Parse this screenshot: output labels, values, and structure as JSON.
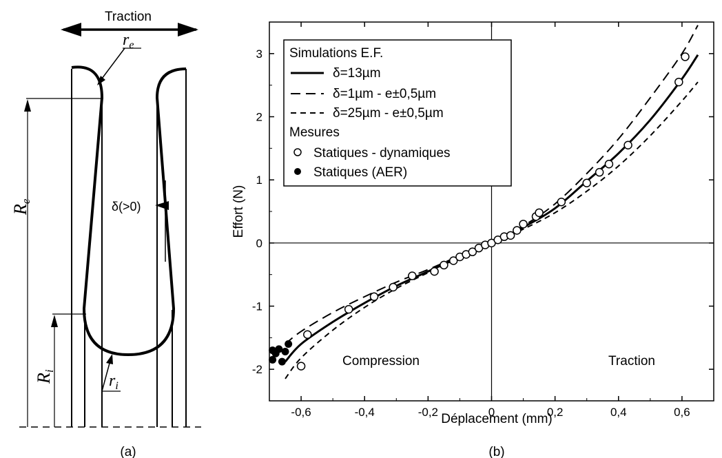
{
  "diagram": {
    "top_label": "Traction",
    "label_re": "r",
    "label_re_sub": "e",
    "label_Re": "R",
    "label_Re_sub": "e",
    "label_ri": "r",
    "label_ri_sub": "i",
    "label_Ri": "R",
    "label_Ri_sub": "i",
    "delta_label": "δ(>0)",
    "caption": "(a)"
  },
  "chart_caption": "(b)",
  "chart_data": {
    "type": "line",
    "title": "",
    "xlabel": "Déplacement (mm)",
    "ylabel": "Effort (N)",
    "xlim": [
      -0.7,
      0.7
    ],
    "ylim": [
      -2.5,
      3.5
    ],
    "xticks": [
      -0.6,
      -0.4,
      -0.2,
      0,
      0.2,
      0.4,
      0.6
    ],
    "xtick_labels": [
      "-0,6",
      "-0,4",
      "-0,2",
      "0",
      "0,2",
      "0,4",
      "0,6"
    ],
    "yticks": [
      -2,
      -1,
      0,
      1,
      2,
      3
    ],
    "ytick_labels": [
      "-2",
      "-1",
      "0",
      "1",
      "2",
      "3"
    ],
    "grid": false,
    "legend_position": "top-left",
    "legend_groups": [
      "Simulations E.F.",
      "Mesures"
    ],
    "annotations": [
      "Compression",
      "Traction"
    ],
    "series": [
      {
        "name": "δ=13µm",
        "style": "solid",
        "x": [
          -0.65,
          -0.6,
          -0.5,
          -0.4,
          -0.3,
          -0.2,
          -0.1,
          0,
          0.1,
          0.2,
          0.3,
          0.4,
          0.5,
          0.6,
          0.65
        ],
        "y": [
          -1.88,
          -1.6,
          -1.25,
          -0.95,
          -0.68,
          -0.45,
          -0.22,
          0,
          0.25,
          0.55,
          0.98,
          1.42,
          1.95,
          2.6,
          2.98
        ]
      },
      {
        "name": "δ=1µm - e±0,5µm",
        "style": "dashed-long",
        "x": [
          -0.65,
          -0.6,
          -0.5,
          -0.4,
          -0.3,
          -0.2,
          -0.1,
          0,
          0.1,
          0.2,
          0.3,
          0.4,
          0.5,
          0.6,
          0.65
        ],
        "y": [
          -1.6,
          -1.4,
          -1.1,
          -0.85,
          -0.62,
          -0.42,
          -0.2,
          0,
          0.27,
          0.62,
          1.1,
          1.65,
          2.3,
          3.0,
          3.45
        ]
      },
      {
        "name": "δ=25µm - e±0,5µm",
        "style": "dashed-short",
        "x": [
          -0.65,
          -0.6,
          -0.5,
          -0.4,
          -0.3,
          -0.2,
          -0.1,
          0,
          0.1,
          0.2,
          0.3,
          0.4,
          0.5,
          0.6,
          0.65
        ],
        "y": [
          -2.15,
          -1.82,
          -1.38,
          -1.02,
          -0.72,
          -0.47,
          -0.23,
          0,
          0.22,
          0.48,
          0.82,
          1.22,
          1.7,
          2.25,
          2.55
        ]
      },
      {
        "name": "Statiques - dynamiques",
        "style": "open-circle",
        "x": [
          -0.6,
          -0.58,
          -0.45,
          -0.37,
          -0.31,
          -0.25,
          -0.18,
          -0.15,
          -0.12,
          -0.1,
          -0.08,
          -0.06,
          -0.04,
          -0.02,
          0.0,
          0.02,
          0.04,
          0.06,
          0.08,
          0.1,
          0.14,
          0.15,
          0.22,
          0.3,
          0.34,
          0.37,
          0.43,
          0.59,
          0.61
        ],
        "y": [
          -1.95,
          -1.45,
          -1.05,
          -0.85,
          -0.7,
          -0.52,
          -0.45,
          -0.35,
          -0.28,
          -0.22,
          -0.18,
          -0.14,
          -0.08,
          -0.03,
          0.0,
          0.05,
          0.1,
          0.12,
          0.2,
          0.3,
          0.42,
          0.48,
          0.65,
          0.95,
          1.12,
          1.25,
          1.55,
          2.55,
          2.95
        ]
      },
      {
        "name": "Statiques (AER)",
        "style": "filled-circle",
        "x": [
          -0.69,
          -0.69,
          -0.68,
          -0.67,
          -0.66,
          -0.65,
          -0.64
        ],
        "y": [
          -1.85,
          -1.7,
          -1.75,
          -1.68,
          -1.88,
          -1.72,
          -1.6
        ]
      }
    ]
  }
}
